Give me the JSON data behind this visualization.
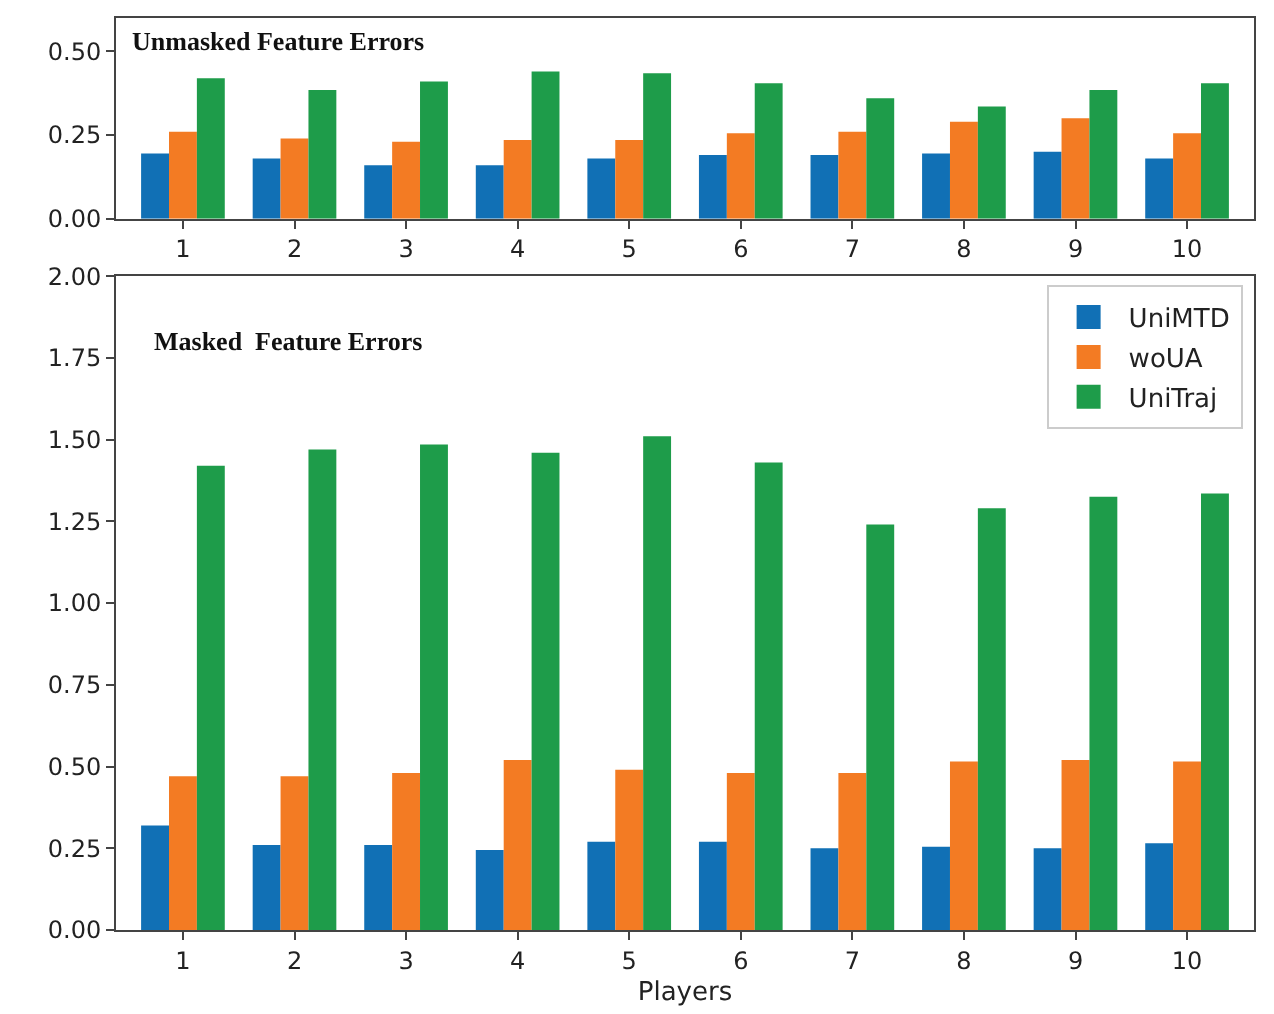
{
  "chart_data": [
    {
      "type": "bar",
      "title": "Unmasked Feature Errors",
      "categories": [
        "1",
        "2",
        "3",
        "4",
        "5",
        "6",
        "7",
        "8",
        "9",
        "10"
      ],
      "ylim": [
        0,
        0.6
      ],
      "yticks": [
        {
          "value": 0,
          "label": "0.00"
        },
        {
          "value": 0.25,
          "label": "0.25"
        },
        {
          "value": 0.5,
          "label": "0.50"
        }
      ],
      "legend": false,
      "series": [
        {
          "color": "#1170b5",
          "values": [
            0.195,
            0.18,
            0.16,
            0.16,
            0.18,
            0.19,
            0.19,
            0.195,
            0.2,
            0.18
          ]
        },
        {
          "color": "#f37b23",
          "values": [
            0.26,
            0.24,
            0.23,
            0.235,
            0.235,
            0.255,
            0.26,
            0.29,
            0.3,
            0.255
          ]
        },
        {
          "color": "#1e9c4a",
          "values": [
            0.42,
            0.385,
            0.41,
            0.44,
            0.435,
            0.405,
            0.36,
            0.335,
            0.385,
            0.405
          ]
        }
      ]
    },
    {
      "type": "bar",
      "title": "Masked  Feature Errors",
      "xlabel": "Players",
      "categories": [
        "1",
        "2",
        "3",
        "4",
        "5",
        "6",
        "7",
        "8",
        "9",
        "10"
      ],
      "ylim": [
        0,
        2.0
      ],
      "yticks": [
        {
          "value": 0,
          "label": "0.00"
        },
        {
          "value": 0.25,
          "label": "0.25"
        },
        {
          "value": 0.5,
          "label": "0.50"
        },
        {
          "value": 0.75,
          "label": "0.75"
        },
        {
          "value": 1,
          "label": "1.00"
        },
        {
          "value": 1.25,
          "label": "1.25"
        },
        {
          "value": 1.5,
          "label": "1.50"
        },
        {
          "value": 1.75,
          "label": "1.75"
        },
        {
          "value": 2,
          "label": "2.00"
        }
      ],
      "legend": "top right",
      "series": [
        {
          "name": "UniMTD",
          "color": "#1170b5",
          "values": [
            0.32,
            0.26,
            0.26,
            0.245,
            0.27,
            0.27,
            0.25,
            0.255,
            0.25,
            0.265
          ]
        },
        {
          "name": "woUA",
          "color": "#f37b23",
          "values": [
            0.47,
            0.47,
            0.48,
            0.52,
            0.49,
            0.48,
            0.48,
            0.515,
            0.52,
            0.515
          ]
        },
        {
          "name": "UniTraj",
          "color": "#1e9c4a",
          "values": [
            1.42,
            1.47,
            1.485,
            1.46,
            1.51,
            1.43,
            1.24,
            1.29,
            1.325,
            1.335
          ]
        }
      ]
    }
  ]
}
